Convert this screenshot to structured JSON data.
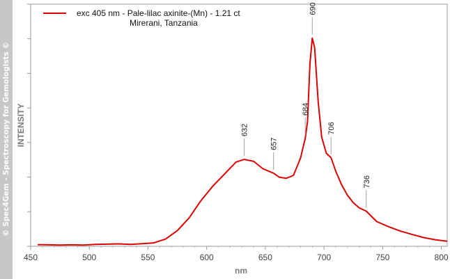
{
  "watermark": "© Spec4Gem - Spectroscopy for Gemologists ©",
  "chart_data": {
    "type": "line",
    "xlabel": "nm",
    "ylabel": "INTENSITY",
    "xlim": [
      450,
      805
    ],
    "ylim": [
      0,
      1
    ],
    "x_ticks": [
      450,
      500,
      550,
      600,
      650,
      700,
      750,
      800
    ],
    "x_tick_labels": [
      "450",
      "500",
      "550",
      "600",
      "650",
      "700",
      "750",
      "800"
    ],
    "grid": false,
    "legend_position": "top-left",
    "series": [
      {
        "name": "exc 405 nm - Pale-lilac axinite-(Mn) - 1.21 ct",
        "name_line2": "Mirerani, Tanzania",
        "color": "#dd0000",
        "x": [
          456,
          465,
          475,
          485,
          495,
          505,
          515,
          525,
          535,
          545,
          555,
          565,
          575,
          585,
          595,
          605,
          615,
          625,
          632,
          640,
          648,
          657,
          662,
          668,
          674,
          680,
          683,
          684,
          686,
          688,
          690,
          692,
          695,
          698,
          702,
          706,
          710,
          715,
          720,
          725,
          730,
          736,
          745,
          755,
          765,
          775,
          785,
          795,
          805
        ],
        "y": [
          0.007,
          0.006,
          0.005,
          0.006,
          0.005,
          0.008,
          0.009,
          0.01,
          0.008,
          0.011,
          0.014,
          0.03,
          0.065,
          0.117,
          0.188,
          0.247,
          0.297,
          0.348,
          0.359,
          0.351,
          0.32,
          0.302,
          0.285,
          0.281,
          0.293,
          0.364,
          0.426,
          0.445,
          0.517,
          0.753,
          0.86,
          0.82,
          0.6,
          0.451,
          0.384,
          0.366,
          0.31,
          0.254,
          0.211,
          0.18,
          0.159,
          0.145,
          0.102,
          0.081,
          0.063,
          0.049,
          0.036,
          0.027,
          0.021
        ]
      }
    ],
    "annotations": [
      {
        "label": "632",
        "x": 632,
        "y": 0.359
      },
      {
        "label": "657",
        "x": 657,
        "y": 0.302
      },
      {
        "label": "684",
        "x": 684,
        "y": 0.445
      },
      {
        "label": "690",
        "x": 690,
        "y": 0.86
      },
      {
        "label": "706",
        "x": 706,
        "y": 0.366
      },
      {
        "label": "736",
        "x": 736,
        "y": 0.145
      }
    ]
  }
}
